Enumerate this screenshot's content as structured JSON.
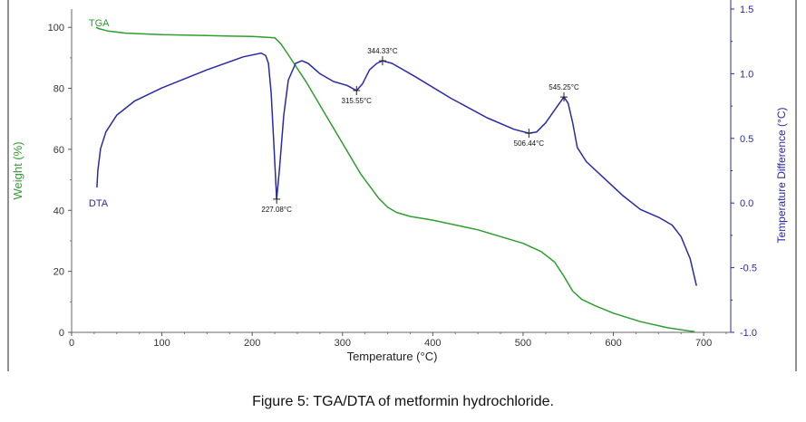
{
  "caption": "Figure 5: TGA/DTA of metformin hydrochloride.",
  "chart_data": {
    "type": "line",
    "xlabel": "Temperature (°C)",
    "ylabel_left": "Weight (%)",
    "ylabel_right": "Temperature Difference (°C)",
    "xlim": [
      0,
      730
    ],
    "ylim_left": [
      0,
      106
    ],
    "ylim_right": [
      -1.0,
      1.5
    ],
    "x_ticks": [
      0,
      100,
      200,
      300,
      400,
      500,
      600,
      700
    ],
    "x_tick_labels": [
      "0",
      "100",
      "200",
      "300",
      "400",
      "500",
      "600",
      "700"
    ],
    "y_left_ticks": [
      0,
      20,
      40,
      60,
      80,
      100
    ],
    "y_left_tick_labels": [
      "0",
      "20",
      "40",
      "60",
      "80",
      "100"
    ],
    "y_right_ticks": [
      -1.0,
      -0.5,
      0.0,
      0.5,
      1.0,
      1.5
    ],
    "y_right_tick_labels": [
      "-1.0",
      "-0.5",
      "0.0",
      "0.5",
      "1.0",
      "1.5"
    ],
    "colors": {
      "tga": "#2e9e2e",
      "dta": "#2a2aa8",
      "axis_left": "#555555",
      "axis_right": "#2a2aa8"
    },
    "series": [
      {
        "name": "TGA",
        "axis": "left",
        "points": [
          [
            27,
            100
          ],
          [
            30,
            99.6
          ],
          [
            40,
            98.8
          ],
          [
            60,
            98.1
          ],
          [
            100,
            97.6
          ],
          [
            150,
            97.3
          ],
          [
            200,
            97.0
          ],
          [
            225,
            96.6
          ],
          [
            232,
            94.5
          ],
          [
            240,
            91
          ],
          [
            260,
            82
          ],
          [
            280,
            72
          ],
          [
            300,
            62
          ],
          [
            320,
            52
          ],
          [
            340,
            44
          ],
          [
            350,
            41
          ],
          [
            360,
            39.3
          ],
          [
            375,
            38
          ],
          [
            400,
            36.8
          ],
          [
            450,
            33.6
          ],
          [
            500,
            29.2
          ],
          [
            520,
            26.5
          ],
          [
            535,
            23
          ],
          [
            545,
            18.5
          ],
          [
            555,
            13.5
          ],
          [
            565,
            10.8
          ],
          [
            580,
            8.7
          ],
          [
            600,
            6.3
          ],
          [
            630,
            3.5
          ],
          [
            660,
            1.5
          ],
          [
            690,
            0.2
          ]
        ]
      },
      {
        "name": "DTA",
        "axis": "right",
        "points": [
          [
            28,
            0.12
          ],
          [
            29,
            0.25
          ],
          [
            32,
            0.42
          ],
          [
            38,
            0.55
          ],
          [
            50,
            0.68
          ],
          [
            70,
            0.79
          ],
          [
            100,
            0.89
          ],
          [
            150,
            1.03
          ],
          [
            190,
            1.13
          ],
          [
            210,
            1.16
          ],
          [
            215,
            1.14
          ],
          [
            218,
            1.08
          ],
          [
            221,
            0.85
          ],
          [
            224,
            0.45
          ],
          [
            227.08,
            0.03
          ],
          [
            230,
            0.25
          ],
          [
            235,
            0.68
          ],
          [
            240,
            0.95
          ],
          [
            248,
            1.08
          ],
          [
            255,
            1.1
          ],
          [
            262,
            1.08
          ],
          [
            275,
            1.0
          ],
          [
            290,
            0.94
          ],
          [
            305,
            0.91
          ],
          [
            315.55,
            0.87
          ],
          [
            322,
            0.92
          ],
          [
            330,
            1.03
          ],
          [
            338,
            1.08
          ],
          [
            344.33,
            1.1
          ],
          [
            355,
            1.08
          ],
          [
            380,
            0.98
          ],
          [
            420,
            0.81
          ],
          [
            460,
            0.66
          ],
          [
            490,
            0.57
          ],
          [
            506.44,
            0.54
          ],
          [
            515,
            0.55
          ],
          [
            525,
            0.62
          ],
          [
            535,
            0.72
          ],
          [
            545.25,
            0.82
          ],
          [
            550,
            0.77
          ],
          [
            555,
            0.62
          ],
          [
            560,
            0.43
          ],
          [
            570,
            0.32
          ],
          [
            590,
            0.19
          ],
          [
            610,
            0.06
          ],
          [
            630,
            -0.05
          ],
          [
            650,
            -0.11
          ],
          [
            665,
            -0.17
          ],
          [
            675,
            -0.26
          ],
          [
            685,
            -0.43
          ],
          [
            692,
            -0.64
          ]
        ]
      }
    ],
    "series_labels": [
      {
        "text": "TGA",
        "x": 30,
        "y": 101.5,
        "axis": "left"
      },
      {
        "text": "DTA",
        "x": 30,
        "y": 0.0,
        "axis": "right"
      }
    ],
    "annotations": [
      {
        "text": "227.08°C",
        "x": 227.08,
        "y": 0.03,
        "axis": "right",
        "pos": "below"
      },
      {
        "text": "315.55°C",
        "x": 315.55,
        "y": 0.87,
        "axis": "right",
        "pos": "below"
      },
      {
        "text": "344.33°C",
        "x": 344.33,
        "y": 1.1,
        "axis": "right",
        "pos": "above"
      },
      {
        "text": "506.44°C",
        "x": 506.44,
        "y": 0.54,
        "axis": "right",
        "pos": "below"
      },
      {
        "text": "545.25°C",
        "x": 545.25,
        "y": 0.82,
        "axis": "right",
        "pos": "above"
      }
    ]
  }
}
